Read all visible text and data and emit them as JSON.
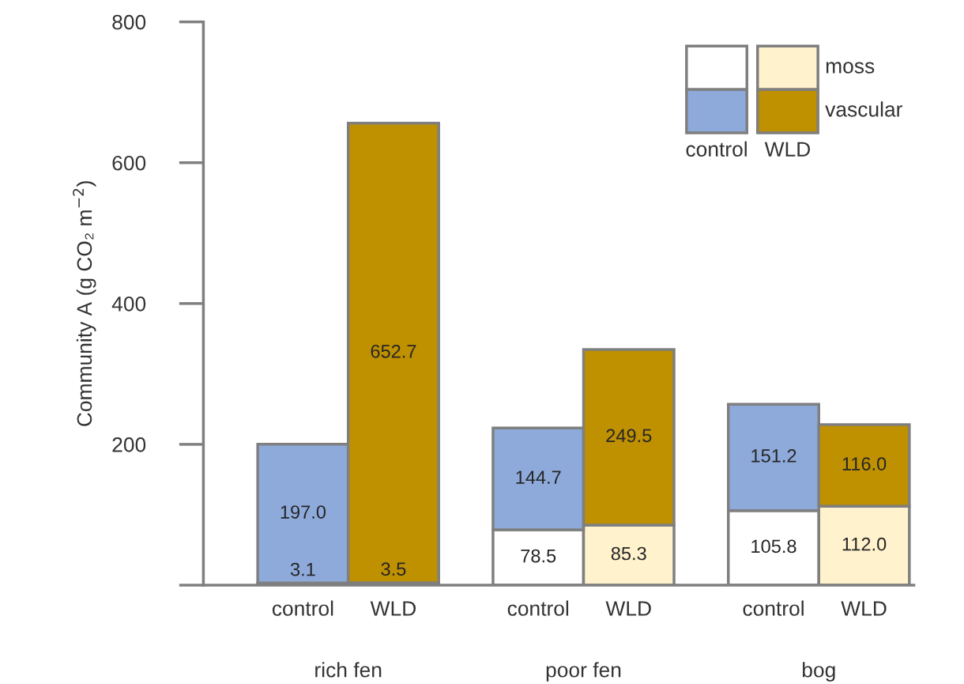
{
  "chart_data": {
    "type": "bar",
    "stacked": true,
    "categories": [
      "control",
      "WLD",
      "control",
      "WLD",
      "control",
      "WLD"
    ],
    "ylabel": "Community A (g CO₂ m$^{−2}$)",
    "ylim": [
      0,
      800
    ],
    "yticks": [
      {
        "value": 0,
        "label": null
      },
      200,
      400,
      600,
      800
    ],
    "series": [
      {
        "name": "moss",
        "colors": [
          "#ffffff",
          "#fff2cc",
          "#ffffff",
          "#fff2cc",
          "#ffffff",
          "#fff2cc"
        ],
        "values": [
          3.1,
          3.5,
          78.5,
          85.3,
          105.8,
          112.0
        ],
        "value_labels": [
          "3.1",
          "3.5",
          "78.5",
          "85.3",
          "105.8",
          "112.0"
        ]
      },
      {
        "name": "vascular",
        "colors": [
          "#8eaadb",
          "#bf9000",
          "#8eaadb",
          "#bf9000",
          "#8eaadb",
          "#bf9000"
        ],
        "values": [
          197.0,
          652.7,
          144.7,
          249.5,
          151.2,
          116.0
        ],
        "value_labels": [
          "197.0",
          "652.7",
          "144.7",
          "249.5",
          "151.2",
          "116.0"
        ]
      }
    ],
    "annotations": [
      "rich fen",
      "poor fen",
      "bog"
    ],
    "legend": "top right",
    "grid": false
  }
}
